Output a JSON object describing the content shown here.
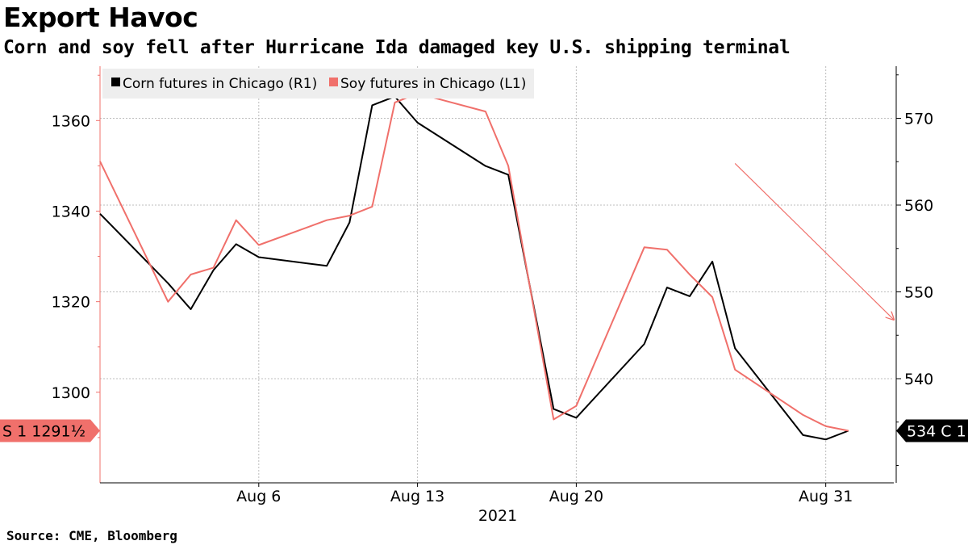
{
  "header": {
    "title": "Export Havoc",
    "subtitle": "Corn and soy fell after Hurricane Ida damaged key U.S. shipping terminal"
  },
  "footer": {
    "source": "Source: CME, Bloomberg"
  },
  "colors": {
    "corn": "#000000",
    "soy": "#f0706b",
    "grid": "#bdbdbd",
    "axis": "#000000"
  },
  "chart_data": {
    "type": "line",
    "title": "Export Havoc",
    "subtitle": "Corn and soy fell after Hurricane Ida damaged key U.S. shipping terminal",
    "x_axis": {
      "type": "date",
      "range": [
        "2021-07-30",
        "2021-09-03"
      ],
      "ticks": [
        {
          "date": "2021-08-06",
          "label": "Aug 6"
        },
        {
          "date": "2021-08-13",
          "label": "Aug 13"
        },
        {
          "date": "2021-08-20",
          "label": "Aug 20"
        },
        {
          "date": "2021-08-31",
          "label": "Aug 31"
        }
      ],
      "year_label": "2021"
    },
    "left_axis": {
      "ylim": [
        1280,
        1372
      ],
      "ticks": [
        1300,
        1320,
        1340,
        1360
      ]
    },
    "right_axis": {
      "ylim": [
        528,
        576
      ],
      "ticks": [
        540,
        550,
        560,
        570
      ]
    },
    "grid": true,
    "legend": {
      "position": "top-left"
    },
    "series": [
      {
        "name": "Corn futures in Chicago (R1)",
        "axis": "right",
        "color": "#000000",
        "x": [
          "2021-07-30",
          "2021-08-02",
          "2021-08-03",
          "2021-08-04",
          "2021-08-05",
          "2021-08-06",
          "2021-08-09",
          "2021-08-10",
          "2021-08-11",
          "2021-08-12",
          "2021-08-13",
          "2021-08-16",
          "2021-08-17",
          "2021-08-18",
          "2021-08-19",
          "2021-08-20",
          "2021-08-23",
          "2021-08-24",
          "2021-08-25",
          "2021-08-26",
          "2021-08-27",
          "2021-08-30",
          "2021-08-31",
          "2021-09-01"
        ],
        "values": [
          559,
          551,
          548,
          552.5,
          555.5,
          554,
          553,
          558,
          571.5,
          572.5,
          569.5,
          564.5,
          563.5,
          550,
          536.5,
          535.5,
          544,
          550.5,
          549.5,
          553.5,
          543.5,
          533.5,
          533,
          534
        ]
      },
      {
        "name": "Soy futures in Chicago (L1)",
        "axis": "left",
        "color": "#f0706b",
        "x": [
          "2021-07-30",
          "2021-08-02",
          "2021-08-03",
          "2021-08-04",
          "2021-08-05",
          "2021-08-06",
          "2021-08-09",
          "2021-08-10",
          "2021-08-11",
          "2021-08-12",
          "2021-08-13",
          "2021-08-16",
          "2021-08-17",
          "2021-08-18",
          "2021-08-19",
          "2021-08-20",
          "2021-08-23",
          "2021-08-24",
          "2021-08-25",
          "2021-08-26",
          "2021-08-27",
          "2021-08-30",
          "2021-08-31",
          "2021-09-01"
        ],
        "values": [
          1351,
          1320,
          1326,
          1327.5,
          1338,
          1332.5,
          1338,
          1339,
          1341,
          1364,
          1366,
          1362,
          1350,
          1322,
          1294,
          1297,
          1332,
          1331.5,
          1326,
          1321,
          1305,
          1295,
          1292.5,
          1291.5
        ]
      }
    ],
    "last_value_labels": [
      {
        "series": "Soy futures in Chicago (L1)",
        "side": "left",
        "text": "S 1 1291½"
      },
      {
        "series": "Corn futures in Chicago (R1)",
        "side": "right",
        "text": "534 C 1"
      }
    ],
    "annotations": [
      {
        "type": "arrow",
        "description": "downward trend arrow",
        "from": [
          "2021-08-27",
          564.8
        ],
        "to": [
          "2021-09-03",
          546.8
        ]
      }
    ]
  }
}
